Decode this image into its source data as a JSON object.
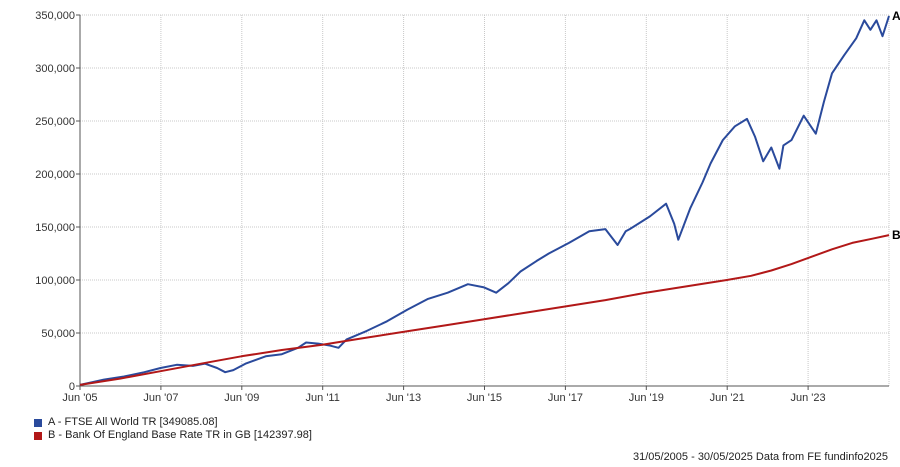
{
  "chart_data": {
    "type": "line",
    "x_ticks": [
      "Jun '05",
      "Jun '07",
      "Jun '09",
      "Jun '11",
      "Jun '13",
      "Jun '15",
      "Jun '17",
      "Jun '19",
      "Jun '21",
      "Jun '23"
    ],
    "y_ticks": [
      "0",
      "50,000",
      "100,000",
      "150,000",
      "200,000",
      "250,000",
      "300,000",
      "350,000"
    ],
    "ylim": [
      0,
      350000
    ],
    "xlim": [
      2005.41,
      2025.41
    ],
    "grid": true,
    "legend_position": "bottom-left",
    "series": [
      {
        "name": "A - FTSE All World TR [349085.08]",
        "end_label": "A",
        "color": "#2a4a9c",
        "x": [
          2005.41,
          2006.0,
          2006.5,
          2007.0,
          2007.4,
          2007.8,
          2008.2,
          2008.5,
          2008.8,
          2009.0,
          2009.2,
          2009.5,
          2010.0,
          2010.4,
          2010.8,
          2011.0,
          2011.3,
          2011.6,
          2011.8,
          2012.0,
          2012.5,
          2013.0,
          2013.5,
          2014.0,
          2014.5,
          2015.0,
          2015.4,
          2015.7,
          2016.0,
          2016.3,
          2016.7,
          2017.0,
          2017.5,
          2018.0,
          2018.4,
          2018.7,
          2018.9,
          2019.0,
          2019.5,
          2019.9,
          2020.1,
          2020.2,
          2020.5,
          2020.8,
          2021.0,
          2021.3,
          2021.6,
          2021.9,
          2022.1,
          2022.3,
          2022.5,
          2022.7,
          2022.8,
          2023.0,
          2023.3,
          2023.6,
          2023.8,
          2024.0,
          2024.3,
          2024.6,
          2024.8,
          2024.95,
          2025.1,
          2025.25,
          2025.41
        ],
        "y": [
          1000,
          6000,
          9000,
          13000,
          17000,
          20000,
          19000,
          21000,
          17000,
          13000,
          15000,
          21000,
          28000,
          30000,
          36000,
          41000,
          40000,
          38000,
          36000,
          44000,
          52000,
          61000,
          72000,
          82000,
          88000,
          96000,
          93000,
          88000,
          97000,
          108000,
          118000,
          125000,
          135000,
          146000,
          148000,
          133000,
          146000,
          148000,
          160000,
          172000,
          153000,
          138000,
          168000,
          192000,
          210000,
          232000,
          245000,
          252000,
          235000,
          212000,
          225000,
          205000,
          227000,
          232000,
          255000,
          238000,
          268000,
          295000,
          312000,
          328000,
          345000,
          336000,
          345000,
          330000,
          349085
        ]
      },
      {
        "name": "B - Bank Of England Base Rate TR in GB [142397.98]",
        "end_label": "B",
        "color": "#b21818",
        "x": [
          2005.41,
          2006.4,
          2007.4,
          2008.4,
          2009.4,
          2010.4,
          2011.4,
          2012.4,
          2013.4,
          2014.4,
          2015.4,
          2016.4,
          2017.4,
          2018.4,
          2019.4,
          2020.4,
          2021.4,
          2022.0,
          2022.5,
          2023.0,
          2023.5,
          2024.0,
          2024.5,
          2025.0,
          2025.41
        ],
        "y": [
          1000,
          7000,
          14000,
          21000,
          28000,
          34000,
          39000,
          45000,
          51000,
          57000,
          63000,
          69000,
          75000,
          81000,
          88000,
          94000,
          100000,
          104000,
          109000,
          115000,
          122000,
          129000,
          135000,
          139000,
          142398
        ]
      }
    ]
  },
  "legend": [
    {
      "label": "A - FTSE All World TR [349085.08]",
      "color": "#2a4a9c"
    },
    {
      "label": "B - Bank Of England Base Rate TR in GB [142397.98]",
      "color": "#b21818"
    }
  ],
  "footer": "31/05/2005 - 30/05/2025 Data from FE fundinfo2025"
}
